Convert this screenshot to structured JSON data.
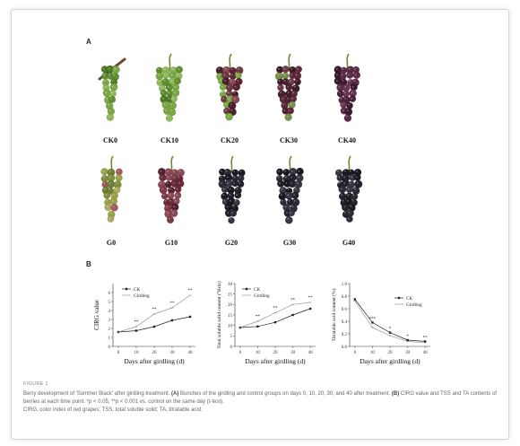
{
  "panel_a_label": "A",
  "panel_b_label": "B",
  "bunches": [
    {
      "label": "CK0",
      "color": "green",
      "stem": "cut"
    },
    {
      "label": "CK10",
      "color": "green",
      "stem": "normal"
    },
    {
      "label": "CK20",
      "color": "mixed",
      "stem": "normal"
    },
    {
      "label": "CK30",
      "color": "mixed-dark",
      "stem": "normal"
    },
    {
      "label": "CK40",
      "color": "purple",
      "stem": "normal"
    },
    {
      "label": "G0",
      "color": "yellow-green",
      "stem": "normal"
    },
    {
      "label": "G10",
      "color": "purple-red",
      "stem": "normal"
    },
    {
      "label": "G20",
      "color": "dark",
      "stem": "normal"
    },
    {
      "label": "G30",
      "color": "dark",
      "stem": "normal"
    },
    {
      "label": "G40",
      "color": "dark",
      "stem": "normal"
    }
  ],
  "chart_data": [
    {
      "type": "line",
      "xlabel": "Days after girdling (d)",
      "ylabel": "CIRG value",
      "x": [
        0,
        10,
        20,
        30,
        40
      ],
      "ylim": [
        0,
        7
      ],
      "yticks": [
        0,
        1,
        2,
        3,
        4,
        5,
        6
      ],
      "legend": [
        "CK",
        "Girdling"
      ],
      "series": [
        {
          "name": "CK",
          "values": [
            1.6,
            1.75,
            2.2,
            2.9,
            3.3
          ]
        },
        {
          "name": "Girdling",
          "values": [
            1.6,
            2.2,
            3.6,
            4.3,
            5.7
          ]
        }
      ],
      "annotations": [
        "**",
        "**",
        "**",
        "**"
      ]
    },
    {
      "type": "line",
      "xlabel": "Days after girdling (d)",
      "ylabel": "Total soluble solid content (°Brix)",
      "x": [
        0,
        10,
        20,
        30,
        40
      ],
      "ylim": [
        0,
        30
      ],
      "yticks": [
        0,
        5,
        10,
        15,
        20,
        25,
        30
      ],
      "legend": [
        "CK",
        "Girdling"
      ],
      "series": [
        {
          "name": "CK",
          "values": [
            9,
            9.5,
            11.5,
            15,
            18
          ]
        },
        {
          "name": "Girdling",
          "values": [
            9,
            12,
            16,
            20,
            21
          ]
        }
      ],
      "annotations": [
        "**",
        "**",
        "**",
        "**"
      ]
    },
    {
      "type": "line",
      "xlabel": "Days after girdling (d)",
      "ylabel": "Titratable acid content (%)",
      "x": [
        0,
        10,
        20,
        30,
        40
      ],
      "ylim": [
        0,
        1.0
      ],
      "yticks": [
        0.0,
        0.2,
        0.4,
        0.6,
        0.8,
        1.0
      ],
      "legend": [
        "CK",
        "Girdling"
      ],
      "series": [
        {
          "name": "CK",
          "values": [
            0.75,
            0.38,
            0.22,
            0.1,
            0.08
          ]
        },
        {
          "name": "Girdling",
          "values": [
            0.72,
            0.3,
            0.17,
            0.08,
            0.06
          ]
        }
      ],
      "annotations": [
        "***",
        "*",
        "*",
        "**"
      ]
    }
  ],
  "caption": {
    "fig_label": "FIGURE 1",
    "line1_pre": "Berry development of 'Summer Black' after girdling treatment.",
    "a_tag": "(A)",
    "line1_a": "Bunches of the girdling and control groups on days 0, 10, 20, 30, and 40 after treatment.",
    "b_tag": "(B)",
    "line_b": "CIRG value and TSS and TA contents of berries at each time point. *p < 0.05, **p < 0.001 vs. control on the same day (t-test).",
    "line3": "CIRG, color index of red grapes; TSS, total soluble solid; TA, titratable acid."
  },
  "colors": {
    "green": "#6f9a3a",
    "mixed": "#6b2e3a",
    "dark": "#2b2733",
    "purple": "#4a2338"
  }
}
